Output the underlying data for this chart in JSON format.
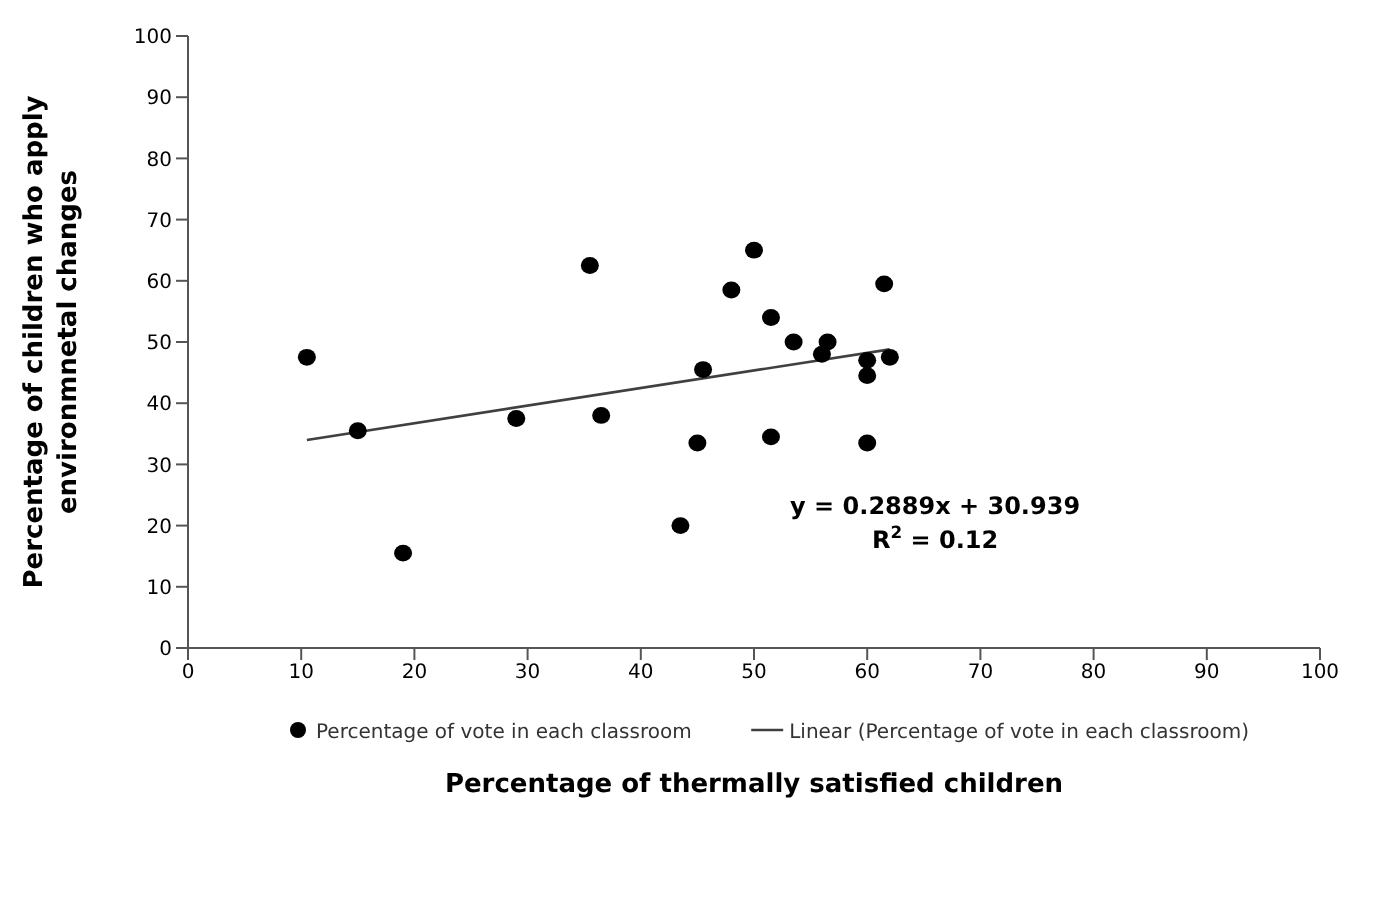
{
  "chart_data": {
    "type": "scatter",
    "xlabel": "Percentage of thermally satisfied children",
    "ylabel": "Percentage of children who apply environmnetal changes",
    "xlim": [
      0,
      100
    ],
    "xticks": [
      0,
      10,
      20,
      30,
      40,
      50,
      60,
      70,
      80,
      90,
      100
    ],
    "ylim": [
      0,
      100
    ],
    "yticks": [
      0,
      10,
      20,
      30,
      40,
      50,
      60,
      70,
      80,
      90,
      100
    ],
    "legend": "bottom",
    "series": [
      {
        "name": "Percentage of vote in each classroom",
        "marker": "circle",
        "color": "#000000",
        "x": [
          10.5,
          15,
          19,
          29,
          35.5,
          36.5,
          43.5,
          45,
          45.5,
          48,
          50,
          51.5,
          51.5,
          53.5,
          56,
          56.5,
          60,
          60,
          60,
          61.5,
          62
        ],
        "values": [
          47.5,
          35.5,
          15.5,
          37.5,
          62.5,
          38,
          20,
          33.5,
          45.5,
          58.5,
          65,
          54,
          34.5,
          50,
          48,
          50,
          33.5,
          47,
          44.5,
          59.5,
          47.5
        ]
      },
      {
        "name": "Linear (Percentage of vote in each classroom)",
        "type": "line",
        "color": "#404040",
        "x": [
          10.5,
          62
        ],
        "values": [
          34,
          48.8
        ]
      }
    ],
    "annotations": [
      "y = 0.2889x + 30.939",
      "R$^{2}$ = 0.12"
    ]
  }
}
